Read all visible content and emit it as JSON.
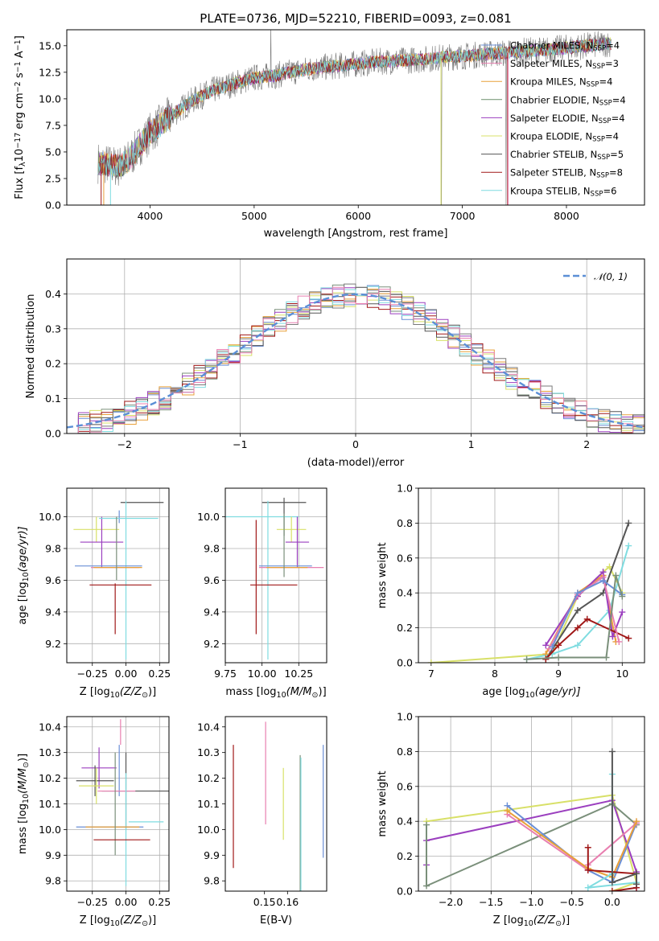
{
  "figure": {
    "title": "PLATE=0736, MJD=52210, FIBERID=0093, z=0.081",
    "model_colors": [
      "#6a8fd6",
      "#e8a03a",
      "#7a8f7a",
      "#9b3fbf",
      "#d8e068",
      "#555555",
      "#a01818",
      "#7fdce0",
      "#7a7a7a",
      "#e87fb0"
    ]
  },
  "chart_data": [
    {
      "id": "spectrum",
      "type": "line",
      "xlabel": "wavelength [Angstrom, rest frame]",
      "ylabel": "Flux [f",
      "ylabel_parts": [
        "Flux [f",
        "λ",
        "10",
        "−17",
        " erg cm",
        "−2",
        " s",
        "−1",
        " A",
        "−1",
        "]"
      ],
      "xlim": [
        3200,
        8750
      ],
      "ylim": [
        0,
        16.5
      ],
      "xticks": [
        4000,
        5000,
        6000,
        7000,
        8000
      ],
      "yticks": [
        0.0,
        2.5,
        5.0,
        7.5,
        10.0,
        12.5,
        15.0
      ],
      "ytick_labels": [
        "0.0",
        "2.5",
        "5.0",
        "7.5",
        "10.0",
        "12.5",
        "15.0"
      ],
      "grid": false,
      "legend_position": "right",
      "continuum": {
        "x": [
          3500,
          3600,
          3700,
          3800,
          3900,
          4000,
          4200,
          4400,
          4600,
          4800,
          5000,
          5200,
          5400,
          5600,
          5800,
          6000,
          6200,
          6400,
          6600,
          6800,
          7000,
          7200,
          7400,
          7600,
          7800,
          8000,
          8200,
          8400
        ],
        "y": [
          4.0,
          3.8,
          3.6,
          4.3,
          5.6,
          6.8,
          8.4,
          9.8,
          10.8,
          11.4,
          12.0,
          12.2,
          12.6,
          12.9,
          13.1,
          13.3,
          13.5,
          13.6,
          13.7,
          13.9,
          14.0,
          14.2,
          14.3,
          14.5,
          14.6,
          14.8,
          15.0,
          15.2
        ]
      },
      "series": [
        {
          "name": "Chabrier MILES",
          "nssp": "4",
          "color": "#6a8fd6"
        },
        {
          "name": "Salpeter MILES",
          "nssp": "3",
          "color": "#e87fb0"
        },
        {
          "name": "Kroupa MILES",
          "nssp": "4",
          "color": "#e8a03a"
        },
        {
          "name": "Chabrier ELODIE",
          "nssp": "4",
          "color": "#6b8f6b"
        },
        {
          "name": "Salpeter ELODIE",
          "nssp": "4",
          "color": "#9b3fbf"
        },
        {
          "name": "Kroupa ELODIE",
          "nssp": "4",
          "color": "#d8e068"
        },
        {
          "name": "Chabrier STELIB",
          "nssp": "5",
          "color": "#555555"
        },
        {
          "name": "Salpeter STELIB",
          "nssp": "8",
          "color": "#a01818"
        },
        {
          "name": "Kroupa STELIB",
          "nssp": "6",
          "color": "#7fdce0"
        }
      ]
    },
    {
      "id": "residuals",
      "type": "step",
      "xlabel": "(data-model)/error",
      "ylabel": "Normed distribution",
      "xlim": [
        -2.5,
        2.5
      ],
      "ylim": [
        0,
        0.5
      ],
      "xticks": [
        -2,
        -1,
        0,
        1,
        2
      ],
      "xtick_labels": [
        "−2",
        "−1",
        "0",
        "1",
        "2"
      ],
      "yticks": [
        0.0,
        0.1,
        0.2,
        0.3,
        0.4
      ],
      "ytick_labels": [
        "0.0",
        "0.1",
        "0.2",
        "0.3",
        "0.4"
      ],
      "grid": true,
      "legend_position": "top-right",
      "gaussian_label": "𝒩(0, 1)",
      "gaussian_color": "#5b8fd6",
      "bin_width": 0.1
    },
    {
      "id": "z-age",
      "type": "errorbar",
      "xlabel": "Z [log",
      "xlabel_parts": [
        "Z [log",
        "10",
        "(Z/Z",
        "⊙",
        ")]"
      ],
      "ylabel_parts": [
        "age  [log",
        "10",
        "(age/yr)]"
      ],
      "xlim": [
        -0.44,
        0.32
      ],
      "ylim": [
        9.08,
        10.18
      ],
      "xticks": [
        -0.25,
        0.0,
        0.25
      ],
      "xtick_labels": [
        "−0.25",
        "0.00",
        "0.25"
      ],
      "yticks": [
        9.2,
        9.4,
        9.6,
        9.8,
        10.0
      ],
      "ytick_labels": [
        "9.2",
        "9.4",
        "9.6",
        "9.8",
        "10.0"
      ],
      "grid": true,
      "points": [
        {
          "x": 0.12,
          "y": 10.09,
          "xerr": 0.16,
          "yerr": 0.0,
          "color": "#555555"
        },
        {
          "x": -0.05,
          "y": 10.0,
          "xerr": 0.0,
          "yerr": 0.04,
          "color": "#6a8fd6"
        },
        {
          "x": -0.22,
          "y": 9.92,
          "xerr": 0.17,
          "yerr": 0.08,
          "color": "#d8e068"
        },
        {
          "x": -0.18,
          "y": 9.84,
          "xerr": 0.16,
          "yerr": 0.16,
          "color": "#9b3fbf"
        },
        {
          "x": 0.02,
          "y": 9.99,
          "xerr": 0.22,
          "yerr": 0.0,
          "color": "#7fdce0"
        },
        {
          "x": 0.0,
          "y": 9.6,
          "xerr": 0.0,
          "yerr": 0.5,
          "color": "#7fdce0"
        },
        {
          "x": -0.13,
          "y": 9.69,
          "xerr": 0.25,
          "yerr": 0.0,
          "color": "#6a8fd6"
        },
        {
          "x": -0.08,
          "y": 9.68,
          "xerr": 0.18,
          "yerr": 0.0,
          "color": "#e87fb0"
        },
        {
          "x": -0.06,
          "y": 9.68,
          "xerr": 0.18,
          "yerr": 0.0,
          "color": "#e8a03a"
        },
        {
          "x": -0.07,
          "y": 9.8,
          "xerr": 0.0,
          "yerr": 0.2,
          "color": "#7a8f7a"
        },
        {
          "x": -0.04,
          "y": 9.57,
          "xerr": 0.23,
          "yerr": 0.0,
          "color": "#a01818"
        },
        {
          "x": -0.08,
          "y": 9.42,
          "xerr": 0.0,
          "yerr": 0.16,
          "color": "#a01818"
        }
      ]
    },
    {
      "id": "mass-age",
      "type": "errorbar",
      "xlabel_parts": [
        "mass [log",
        "10",
        "(M/M",
        "⊙",
        ")]"
      ],
      "xlim": [
        9.75,
        10.44
      ],
      "ylim": [
        9.08,
        10.18
      ],
      "xticks": [
        9.75,
        10.0,
        10.25
      ],
      "xtick_labels": [
        "9.75",
        "10.00",
        "10.25"
      ],
      "yticks": [
        9.2,
        9.4,
        9.6,
        9.8,
        10.0
      ],
      "ytick_labels": [
        "9.2",
        "9.4",
        "9.6",
        "9.8",
        "10.0"
      ],
      "grid": true,
      "points": [
        {
          "x": 10.15,
          "y": 10.09,
          "xerr": 0.15,
          "yerr": 0.0,
          "color": "#555555"
        },
        {
          "x": 10.15,
          "y": 10.0,
          "xerr": 0.0,
          "yerr": 0.12,
          "color": "#555555"
        },
        {
          "x": 10.0,
          "y": 10.0,
          "xerr": 0.25,
          "yerr": 0.0,
          "color": "#7fdce0"
        },
        {
          "x": 10.04,
          "y": 9.6,
          "xerr": 0.0,
          "yerr": 0.5,
          "color": "#7fdce0"
        },
        {
          "x": 10.2,
          "y": 9.92,
          "xerr": 0.1,
          "yerr": 0.08,
          "color": "#d8e068"
        },
        {
          "x": 10.24,
          "y": 9.84,
          "xerr": 0.08,
          "yerr": 0.16,
          "color": "#9b3fbf"
        },
        {
          "x": 10.16,
          "y": 9.69,
          "xerr": 0.18,
          "yerr": 0.0,
          "color": "#6a8fd6"
        },
        {
          "x": 10.2,
          "y": 9.68,
          "xerr": 0.22,
          "yerr": 0.0,
          "color": "#e87fb0"
        },
        {
          "x": 10.17,
          "y": 9.68,
          "xerr": 0.14,
          "yerr": 0.0,
          "color": "#e8a03a"
        },
        {
          "x": 10.15,
          "y": 9.82,
          "xerr": 0.0,
          "yerr": 0.2,
          "color": "#7a8f7a"
        },
        {
          "x": 10.08,
          "y": 9.57,
          "xerr": 0.16,
          "yerr": 0.0,
          "color": "#a01818"
        },
        {
          "x": 9.96,
          "y": 9.62,
          "xerr": 0.0,
          "yerr": 0.36,
          "color": "#a01818"
        }
      ]
    },
    {
      "id": "age-massweight",
      "type": "line",
      "xlabel_parts": [
        "age  [log",
        "10",
        "(age/yr)]"
      ],
      "ylabel": "mass weight",
      "xlim": [
        6.8,
        10.35
      ],
      "ylim": [
        0,
        1
      ],
      "xticks": [
        7,
        8,
        9,
        10
      ],
      "xtick_labels": [
        "7",
        "8",
        "9",
        "10"
      ],
      "yticks": [
        0.0,
        0.2,
        0.4,
        0.6,
        0.8,
        1.0
      ],
      "ytick_labels": [
        "0.0",
        "0.2",
        "0.4",
        "0.6",
        "0.8",
        "1.0"
      ],
      "grid": true,
      "series": [
        {
          "color": "#d8e068",
          "x": [
            7.0,
            8.9,
            9.3,
            9.7,
            9.8,
            10.0
          ],
          "y": [
            0.0,
            0.05,
            0.38,
            0.52,
            0.55,
            0.4
          ]
        },
        {
          "color": "#7fdce0",
          "x": [
            8.5,
            8.9,
            9.3,
            9.8,
            10.1
          ],
          "y": [
            0.02,
            0.05,
            0.1,
            0.3,
            0.67
          ]
        },
        {
          "color": "#555555",
          "x": [
            8.8,
            9.3,
            9.7,
            10.1
          ],
          "y": [
            0.02,
            0.3,
            0.4,
            0.8
          ]
        },
        {
          "color": "#e8a03a",
          "x": [
            8.8,
            9.3,
            9.7,
            9.9
          ],
          "y": [
            0.05,
            0.4,
            0.5,
            0.12
          ]
        },
        {
          "color": "#9b3fbf",
          "x": [
            8.8,
            9.3,
            9.7,
            9.85,
            10.0
          ],
          "y": [
            0.1,
            0.38,
            0.52,
            0.15,
            0.29
          ]
        },
        {
          "color": "#a01818",
          "x": [
            8.8,
            9.0,
            9.3,
            9.45,
            10.1
          ],
          "y": [
            0.02,
            0.1,
            0.2,
            0.25,
            0.14
          ]
        },
        {
          "color": "#e87fb0",
          "x": [
            8.85,
            9.3,
            9.7,
            9.95
          ],
          "y": [
            0.08,
            0.39,
            0.49,
            0.12
          ]
        },
        {
          "color": "#6a8fd6",
          "x": [
            8.9,
            9.3,
            9.7,
            10.0
          ],
          "y": [
            0.09,
            0.4,
            0.47,
            0.39
          ]
        },
        {
          "color": "#7a8f7a",
          "x": [
            8.5,
            9.0,
            9.75,
            9.9,
            10.0
          ],
          "y": [
            0.02,
            0.03,
            0.03,
            0.5,
            0.38
          ]
        }
      ]
    },
    {
      "id": "z-mass",
      "type": "errorbar",
      "xlabel_parts": [
        "Z [log",
        "10",
        "(Z/Z",
        "⊙",
        ")]"
      ],
      "ylabel_parts": [
        "mass [log",
        "10",
        "(M/M",
        "⊙",
        ")]"
      ],
      "xlim": [
        -0.44,
        0.32
      ],
      "ylim": [
        9.76,
        10.44
      ],
      "xticks": [
        -0.25,
        0.0,
        0.25
      ],
      "xtick_labels": [
        "−0.25",
        "0.00",
        "0.25"
      ],
      "yticks": [
        9.8,
        9.9,
        10.0,
        10.1,
        10.2,
        10.3,
        10.4
      ],
      "ytick_labels": [
        "9.8",
        "9.9",
        "10.0",
        "10.1",
        "10.2",
        "10.3",
        "10.4"
      ],
      "grid": true,
      "points": [
        {
          "x": -0.04,
          "y": 10.38,
          "xerr": 0.0,
          "yerr": 0.05,
          "color": "#e87fb0"
        },
        {
          "x": -0.2,
          "y": 10.24,
          "xerr": 0.13,
          "yerr": 0.08,
          "color": "#9b3fbf"
        },
        {
          "x": -0.23,
          "y": 10.19,
          "xerr": 0.14,
          "yerr": 0.06,
          "color": "#555555"
        },
        {
          "x": -0.22,
          "y": 10.17,
          "xerr": 0.13,
          "yerr": 0.07,
          "color": "#d8e068"
        },
        {
          "x": -0.05,
          "y": 10.23,
          "xerr": 0.0,
          "yerr": 0.1,
          "color": "#6a8fd6"
        },
        {
          "x": 0.12,
          "y": 10.15,
          "xerr": 0.3,
          "yerr": 0.0,
          "color": "#555555"
        },
        {
          "x": 0.0,
          "y": 10.15,
          "xerr": 0.0,
          "yerr": 0.15,
          "color": "#555555"
        },
        {
          "x": -0.07,
          "y": 10.15,
          "xerr": 0.14,
          "yerr": 0.0,
          "color": "#e87fb0"
        },
        {
          "x": 0.15,
          "y": 10.03,
          "xerr": 0.13,
          "yerr": 0.0,
          "color": "#7fdce0"
        },
        {
          "x": 0.0,
          "y": 10.0,
          "xerr": 0.0,
          "yerr": 0.22,
          "color": "#7fdce0"
        },
        {
          "x": -0.12,
          "y": 10.01,
          "xerr": 0.25,
          "yerr": 0.0,
          "color": "#6a8fd6"
        },
        {
          "x": -0.1,
          "y": 10.01,
          "xerr": 0.2,
          "yerr": 0.0,
          "color": "#e8a03a"
        },
        {
          "x": -0.08,
          "y": 10.1,
          "xerr": 0.0,
          "yerr": 0.2,
          "color": "#7a8f7a"
        },
        {
          "x": -0.03,
          "y": 9.96,
          "xerr": 0.21,
          "yerr": 0.0,
          "color": "#a01818"
        }
      ]
    },
    {
      "id": "ebv-mass",
      "type": "errorbar",
      "xlabel": "E(B-V)",
      "xlim": [
        0.133,
        0.177
      ],
      "ylim": [
        9.76,
        10.44
      ],
      "xticks": [
        0.15,
        0.16
      ],
      "xtick_labels": [
        "0.15",
        "0.16"
      ],
      "yticks": [
        9.8,
        9.9,
        10.0,
        10.1,
        10.2,
        10.3,
        10.4
      ],
      "ytick_labels": [
        "9.8",
        "9.9",
        "10.0",
        "10.1",
        "10.2",
        "10.3",
        "10.4"
      ],
      "grid": false,
      "points": [
        {
          "x": 0.1365,
          "y": 10.09,
          "xerr": 0.0,
          "yerr": 0.24,
          "color": "#a01818"
        },
        {
          "x": 0.1505,
          "y": 10.22,
          "xerr": 0.0,
          "yerr": 0.2,
          "color": "#e87fb0"
        },
        {
          "x": 0.1582,
          "y": 10.1,
          "xerr": 0.0,
          "yerr": 0.14,
          "color": "#d8e068"
        },
        {
          "x": 0.1655,
          "y": 10.02,
          "xerr": 0.0,
          "yerr": 0.27,
          "color": "#7a8f7a"
        },
        {
          "x": 0.1658,
          "y": 10.0,
          "xerr": 0.0,
          "yerr": 0.28,
          "color": "#7fdce0"
        },
        {
          "x": 0.1755,
          "y": 10.11,
          "xerr": 0.0,
          "yerr": 0.22,
          "color": "#6a8fd6"
        }
      ]
    },
    {
      "id": "z-massweight",
      "type": "line",
      "xlabel_parts": [
        "Z [log",
        "10",
        "(Z/Z",
        "⊙",
        ")]"
      ],
      "ylabel": "mass weight",
      "xlim": [
        -2.4,
        0.4
      ],
      "ylim": [
        0,
        1
      ],
      "xticks": [
        -2.0,
        -1.5,
        -1.0,
        -0.5,
        0.0
      ],
      "xtick_labels": [
        "−2.0",
        "−1.5",
        "−1.0",
        "−0.5",
        "0.0"
      ],
      "yticks": [
        0.0,
        0.2,
        0.4,
        0.6,
        0.8,
        1.0
      ],
      "ytick_labels": [
        "0.0",
        "0.2",
        "0.4",
        "0.6",
        "0.8",
        "1.0"
      ],
      "grid": true,
      "series": [
        {
          "color": "#d8e068",
          "x": [
            -2.3,
            0.0,
            0.3,
            0.0
          ],
          "y": [
            0.4,
            0.55,
            0.05,
            0.0
          ]
        },
        {
          "color": "#9b3fbf",
          "x": [
            -2.3,
            -2.3,
            0.0,
            0.3,
            0.3
          ],
          "y": [
            0.15,
            0.29,
            0.52,
            0.11,
            0.02
          ]
        },
        {
          "color": "#7a8f7a",
          "x": [
            -2.3,
            -2.3,
            0.0,
            0.3
          ],
          "y": [
            0.38,
            0.03,
            0.5,
            0.38
          ]
        },
        {
          "color": "#6a8fd6",
          "x": [
            -1.3,
            -0.3,
            0.0,
            0.3
          ],
          "y": [
            0.49,
            0.12,
            0.05,
            0.39
          ]
        },
        {
          "color": "#e87fb0",
          "x": [
            -1.3,
            -0.3,
            -0.3,
            0.3
          ],
          "y": [
            0.44,
            0.12,
            0.15,
            0.39
          ]
        },
        {
          "color": "#e8a03a",
          "x": [
            -1.3,
            -0.3,
            0.0,
            0.3
          ],
          "y": [
            0.46,
            0.13,
            0.08,
            0.4
          ]
        },
        {
          "color": "#a01818",
          "x": [
            -0.3,
            -0.3,
            0.3,
            0.3,
            0.0
          ],
          "y": [
            0.25,
            0.12,
            0.1,
            0.02,
            0.0
          ]
        },
        {
          "color": "#7fdce0",
          "x": [
            0.0,
            0.0,
            -0.3,
            0.3
          ],
          "y": [
            0.67,
            0.1,
            0.02,
            0.05
          ]
        },
        {
          "color": "#555555",
          "x": [
            0.0,
            0.0,
            0.3,
            0.3
          ],
          "y": [
            0.8,
            0.05,
            0.1,
            0.04
          ]
        }
      ]
    }
  ]
}
